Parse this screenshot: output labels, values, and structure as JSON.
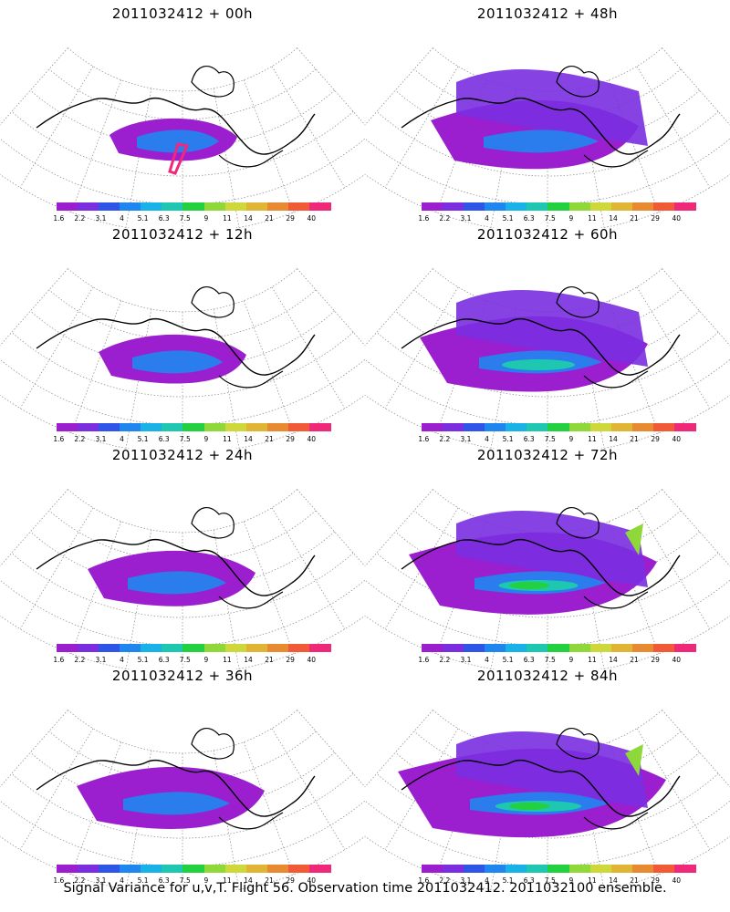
{
  "caption": "Signal Variance for u,v,T. Flight 56. Observation time 2011032412. 2011032100 ensemble.",
  "colorbar": {
    "colors": [
      "#9b1fcf",
      "#7a2ee0",
      "#2f55e8",
      "#1f86f0",
      "#19b2e8",
      "#1ec8b0",
      "#22d040",
      "#8fd83a",
      "#cfd83a",
      "#e0b434",
      "#e88a32",
      "#f05a36",
      "#f0287a"
    ],
    "labels": [
      "1.6",
      "2.2",
      "3.1",
      "4",
      "5.1",
      "6.3",
      "7.5",
      "9",
      "11",
      "14",
      "21",
      "29",
      "40"
    ]
  },
  "panels": [
    {
      "title": "2011032412 + 00h",
      "level": 0
    },
    {
      "title": "2011032412 + 12h",
      "level": 1
    },
    {
      "title": "2011032412 + 24h",
      "level": 2
    },
    {
      "title": "2011032412 + 36h",
      "level": 3
    },
    {
      "title": "2011032412 + 48h",
      "level": 4
    },
    {
      "title": "2011032412 + 60h",
      "level": 5
    },
    {
      "title": "2011032412 + 72h",
      "level": 6
    },
    {
      "title": "2011032412 + 84h",
      "level": 7
    }
  ]
}
